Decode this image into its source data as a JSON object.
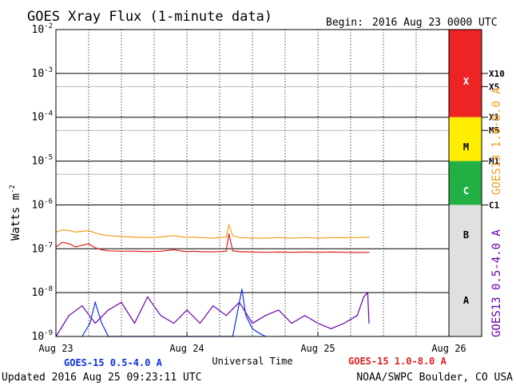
{
  "header": {
    "title": "GOES Xray Flux (1-minute data)",
    "begin_label": "Begin:",
    "begin_value": "2016 Aug 23 0000 UTC"
  },
  "footer": {
    "updated": "Updated 2016 Aug 25 09:23:11 UTC",
    "source": "NOAA/SWPC Boulder, CO USA"
  },
  "colors": {
    "goes15_short": "#1030e0",
    "goes15_long": "#e02020",
    "goes13_long": "#f0a020",
    "goes13_short": "#6a00a8",
    "band_x": "#ee2424",
    "band_m": "#ffee00",
    "band_c": "#22b044",
    "band_ab": "#e0e0e0"
  },
  "chart_data": {
    "type": "line",
    "title": "GOES Xray Flux (1-minute data)",
    "xlabel": "Universal Time",
    "ylabel": "Watts m",
    "ylabel_superscript": "-2",
    "yscale": "log",
    "ylim": [
      1e-09,
      0.01
    ],
    "xlim": [
      0,
      3
    ],
    "x_units": "days since 2016 Aug 23 0000 UTC",
    "x_ticks": [
      {
        "value": 0,
        "label": "Aug 23"
      },
      {
        "value": 1,
        "label": "Aug 24"
      },
      {
        "value": 2,
        "label": "Aug 25"
      },
      {
        "value": 3,
        "label": "Aug 26"
      }
    ],
    "y_ticks": [
      {
        "exp": -2,
        "label": "10",
        "sup": "-2"
      },
      {
        "exp": -3,
        "label": "10",
        "sup": "-3"
      },
      {
        "exp": -4,
        "label": "10",
        "sup": "-4"
      },
      {
        "exp": -5,
        "label": "10",
        "sup": "-5"
      },
      {
        "exp": -6,
        "label": "10",
        "sup": "-6"
      },
      {
        "exp": -7,
        "label": "10",
        "sup": "-7"
      },
      {
        "exp": -8,
        "label": "10",
        "sup": "-8"
      },
      {
        "exp": -9,
        "label": "10",
        "sup": "-9"
      }
    ],
    "flare_levels": [
      {
        "label": "X10",
        "value": 0.001
      },
      {
        "label": "X5",
        "value": 0.0005
      },
      {
        "label": "X1",
        "value": 0.0001
      },
      {
        "label": "M5",
        "value": 5e-05
      },
      {
        "label": "M1",
        "value": 1e-05
      },
      {
        "label": "C1",
        "value": 1e-06
      }
    ],
    "flare_classes": [
      {
        "label": "X",
        "from": 0.0001,
        "to": 0.01,
        "color": "#ee2424"
      },
      {
        "label": "M",
        "from": 1e-05,
        "to": 0.0001,
        "color": "#ffee00"
      },
      {
        "label": "C",
        "from": 1e-06,
        "to": 1e-05,
        "color": "#22b044"
      },
      {
        "label": "B",
        "from": 1e-07,
        "to": 1e-06,
        "color": "#e0e0e0"
      },
      {
        "label": "A",
        "from": 1e-09,
        "to": 1e-07,
        "color": "#e0e0e0"
      }
    ],
    "legend": [
      {
        "name": "GOES-15 0.5-4.0 A",
        "color": "#1030e0",
        "placement": "bottom-left"
      },
      {
        "name": "GOES-15 1.0-8.0 A",
        "color": "#e02020",
        "placement": "bottom-right"
      },
      {
        "name": "GOES13 1.0-8.0 A",
        "color": "#f0a020",
        "placement": "right"
      },
      {
        "name": "GOES13 0.5-4.0 A",
        "color": "#6a00a8",
        "placement": "right"
      }
    ],
    "series": [
      {
        "name": "GOES13 1.0-8.0 A",
        "color": "#f0a020",
        "x": [
          0,
          0.05,
          0.1,
          0.15,
          0.2,
          0.25,
          0.3,
          0.35,
          0.4,
          0.5,
          0.6,
          0.7,
          0.8,
          0.9,
          0.95,
          1.0,
          1.05,
          1.1,
          1.2,
          1.3,
          1.32,
          1.35,
          1.4,
          1.5,
          1.6,
          1.7,
          1.8,
          1.9,
          2.0,
          2.1,
          2.2,
          2.3,
          2.39
        ],
        "y": [
          2.4e-07,
          2.7e-07,
          2.6e-07,
          2.4e-07,
          2.5e-07,
          2.6e-07,
          2.3e-07,
          2.1e-07,
          2e-07,
          1.9e-07,
          1.85e-07,
          1.8e-07,
          1.85e-07,
          2e-07,
          1.9e-07,
          1.8e-07,
          1.85e-07,
          1.8e-07,
          1.75e-07,
          1.85e-07,
          3.5e-07,
          2e-07,
          1.8e-07,
          1.75e-07,
          1.75e-07,
          1.8e-07,
          1.75e-07,
          1.8e-07,
          1.75e-07,
          1.8e-07,
          1.78e-07,
          1.8e-07,
          1.85e-07
        ]
      },
      {
        "name": "GOES-15 1.0-8.0 A",
        "color": "#e02020",
        "x": [
          0,
          0.05,
          0.1,
          0.15,
          0.2,
          0.25,
          0.3,
          0.35,
          0.4,
          0.5,
          0.6,
          0.7,
          0.8,
          0.9,
          0.95,
          1.0,
          1.05,
          1.1,
          1.2,
          1.3,
          1.32,
          1.35,
          1.4,
          1.5,
          1.6,
          1.7,
          1.8,
          1.9,
          2.0,
          2.1,
          2.2,
          2.3,
          2.39
        ],
        "y": [
          1.1e-07,
          1.4e-07,
          1.3e-07,
          1.1e-07,
          1.2e-07,
          1.3e-07,
          1.05e-07,
          9.5e-08,
          9e-08,
          8.8e-08,
          8.8e-08,
          8.6e-08,
          8.8e-08,
          9.5e-08,
          9e-08,
          8.6e-08,
          8.8e-08,
          8.6e-08,
          8.5e-08,
          8.8e-08,
          2.2e-07,
          9e-08,
          8.6e-08,
          8.4e-08,
          8.3e-08,
          8.4e-08,
          8.3e-08,
          8.4e-08,
          8.3e-08,
          8.4e-08,
          8.3e-08,
          8.2e-08,
          8.3e-08
        ]
      },
      {
        "name": "GOES-15 0.5-4.0 A",
        "color": "#1030e0",
        "x": [
          0.2,
          0.26,
          0.3,
          0.35,
          0.4,
          1.35,
          1.42,
          1.45,
          1.5,
          1.55,
          1.6
        ],
        "y": [
          1e-09,
          2e-09,
          6e-09,
          2e-09,
          1e-09,
          1e-09,
          1.2e-08,
          3e-09,
          1.5e-09,
          1.2e-09,
          1e-09
        ]
      },
      {
        "name": "GOES13 0.5-4.0 A",
        "color": "#6a00a8",
        "x": [
          0,
          0.1,
          0.2,
          0.3,
          0.4,
          0.5,
          0.6,
          0.7,
          0.8,
          0.9,
          1.0,
          1.1,
          1.2,
          1.3,
          1.4,
          1.5,
          1.6,
          1.7,
          1.8,
          1.9,
          2.0,
          2.1,
          2.2,
          2.3,
          2.35,
          2.38,
          2.39
        ],
        "y": [
          1e-09,
          3e-09,
          5e-09,
          2e-09,
          4e-09,
          6e-09,
          2e-09,
          8e-09,
          3e-09,
          2e-09,
          4e-09,
          2e-09,
          5e-09,
          3e-09,
          6e-09,
          2e-09,
          3e-09,
          4e-09,
          2e-09,
          3e-09,
          2e-09,
          1.5e-09,
          2e-09,
          3e-09,
          8e-09,
          1e-08,
          2e-09
        ]
      }
    ]
  }
}
